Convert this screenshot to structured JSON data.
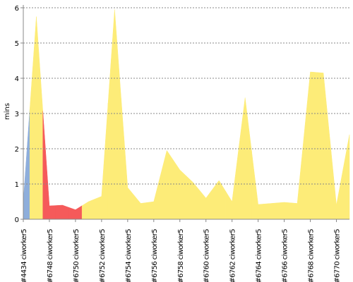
{
  "chart_data": {
    "type": "area",
    "y_label": "mins",
    "categories": [
      "#4434 ciworker5",
      null,
      "#6748 ciworker5",
      null,
      "#6750 ciworker5",
      null,
      "#6752 ciworker5",
      null,
      "#6754 ciworker5",
      null,
      "#6756 ciworker5",
      null,
      "#6758 ciworker5",
      null,
      "#6760 ciworker5",
      null,
      "#6762 ciworker5",
      null,
      "#6764 ciworker5",
      null,
      "#6766 ciworker5",
      null,
      "#6768 ciworker5",
      null,
      "#6770 ciworker5",
      null
    ],
    "values": [
      0.5,
      5.75,
      0.38,
      0.4,
      0.27,
      0.5,
      0.65,
      5.95,
      0.9,
      0.45,
      0.5,
      1.95,
      1.4,
      1.05,
      0.6,
      1.1,
      0.5,
      3.45,
      0.42,
      0.45,
      0.48,
      0.45,
      4.18,
      4.15,
      0.4,
      2.4
    ],
    "point_colors": [
      "#8eaedb",
      "#fdec78",
      "#f55a5a",
      "#f55a5a",
      "#f55a5a",
      "#fdec78",
      "#fdec78",
      "#fdec78",
      "#fdec78",
      "#fdec78",
      "#fdec78",
      "#fdec78",
      "#fdec78",
      "#fdec78",
      "#fdec78",
      "#fdec78",
      "#fdec78",
      "#fdec78",
      "#fdec78",
      "#fdec78",
      "#fdec78",
      "#fdec78",
      "#fdec78",
      "#fdec78",
      "#fdec78",
      "#fdec78"
    ],
    "ylim": [
      0,
      6
    ],
    "yticks": [
      0,
      1,
      2,
      3,
      4,
      5,
      6
    ],
    "grid": true
  }
}
